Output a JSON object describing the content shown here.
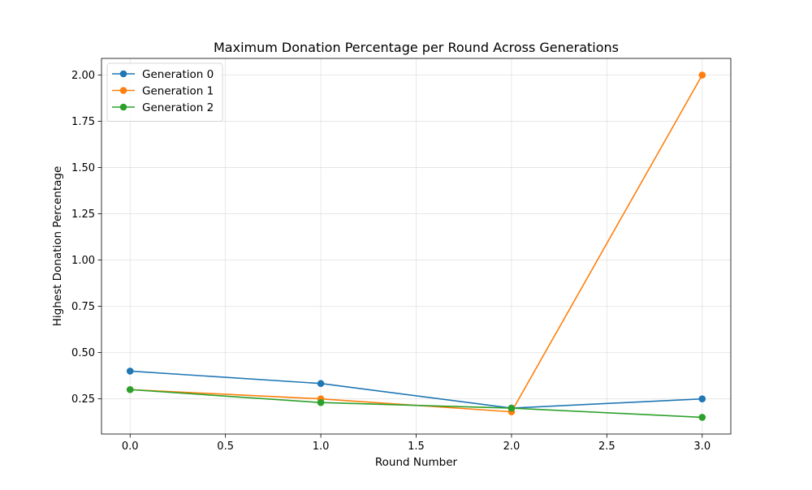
{
  "chart_data": {
    "type": "line",
    "title": "Maximum Donation Percentage per Round Across Generations",
    "xlabel": "Round Number",
    "ylabel": "Highest Donation Percentage",
    "xlim": [
      -0.15,
      3.15
    ],
    "ylim": [
      0.06,
      2.09
    ],
    "x_ticks": [
      0.0,
      0.5,
      1.0,
      1.5,
      2.0,
      2.5,
      3.0
    ],
    "x_tick_labels": [
      "0.0",
      "0.5",
      "1.0",
      "1.5",
      "2.0",
      "2.5",
      "3.0"
    ],
    "y_ticks": [
      0.25,
      0.5,
      0.75,
      1.0,
      1.25,
      1.5,
      1.75,
      2.0
    ],
    "y_tick_labels": [
      "0.25",
      "0.50",
      "0.75",
      "1.00",
      "1.25",
      "1.50",
      "1.75",
      "2.00"
    ],
    "grid": true,
    "legend_position": "top-left",
    "x": [
      0,
      1,
      2,
      3
    ],
    "series": [
      {
        "name": "Generation 0",
        "color": "#1f77b4",
        "values": [
          0.4,
          0.333,
          0.2,
          0.25
        ]
      },
      {
        "name": "Generation 1",
        "color": "#ff7f0e",
        "values": [
          0.3,
          0.25,
          0.18,
          2.0
        ]
      },
      {
        "name": "Generation 2",
        "color": "#2ca02c",
        "values": [
          0.3,
          0.23,
          0.2,
          0.15
        ]
      }
    ]
  }
}
